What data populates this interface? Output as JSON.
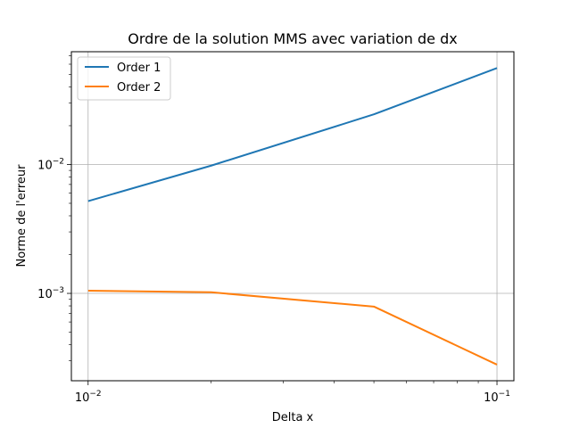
{
  "chart_data": {
    "type": "line",
    "title": "Ordre de la solution MMS avec variation de dx",
    "xlabel": "Delta x",
    "ylabel": "Norme de l'erreur",
    "xscale": "log",
    "yscale": "log",
    "xlim": [
      0.0091,
      0.11
    ],
    "ylim": [
      0.00021,
      0.075
    ],
    "grid": true,
    "legend_position": "top-left",
    "x_major_ticks": [
      0.01,
      0.1
    ],
    "x_major_tick_labels": [
      {
        "base": "10",
        "exp": "−2"
      },
      {
        "base": "10",
        "exp": "−1"
      }
    ],
    "y_major_ticks": [
      0.001,
      0.01
    ],
    "y_major_tick_labels": [
      {
        "base": "10",
        "exp": "−3"
      },
      {
        "base": "10",
        "exp": "−2"
      }
    ],
    "x": [
      0.01,
      0.02,
      0.05,
      0.1
    ],
    "series": [
      {
        "name": "Order 1",
        "color": "#1f77b4",
        "values": [
          0.0052,
          0.0098,
          0.0245,
          0.056
        ]
      },
      {
        "name": "Order 2",
        "color": "#ff7f0e",
        "values": [
          0.00105,
          0.00102,
          0.00079,
          0.00028
        ]
      }
    ]
  }
}
